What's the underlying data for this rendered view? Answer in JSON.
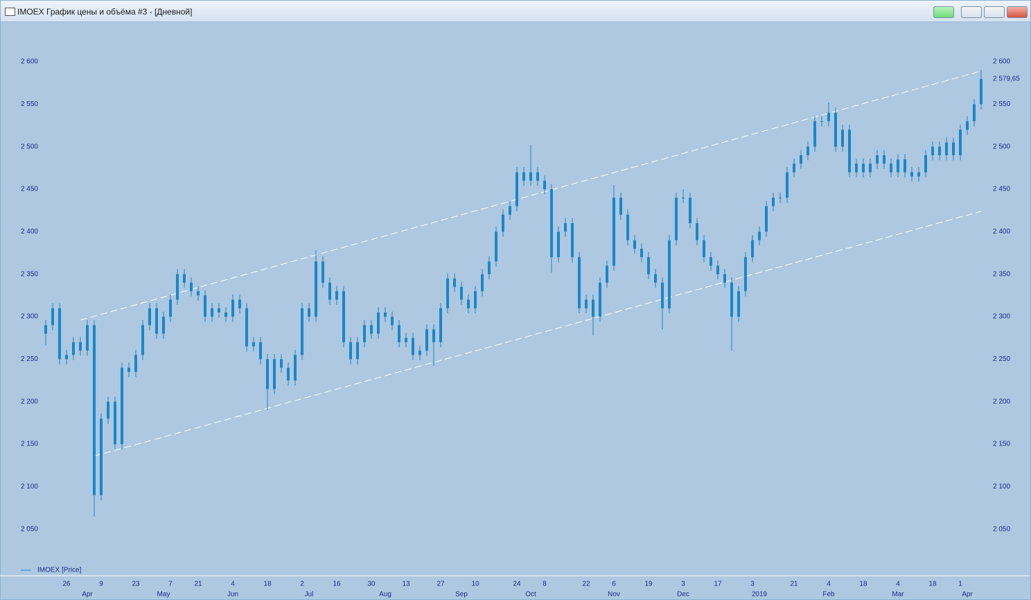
{
  "chart_data": {
    "type": "candlestick",
    "title": "IMOEX График цены и объёма #3 - [Дневной]",
    "last_price_label": "2 579,65",
    "series": [
      {
        "name": "IMOEX [Price]",
        "color": "#1a86c8",
        "open": [
          2280,
          2290,
          2310,
          2250,
          2255,
          2270,
          2260,
          2290,
          2090,
          2180,
          2200,
          2150,
          2240,
          2235,
          2255,
          2290,
          2310,
          2280,
          2300,
          2320,
          2350,
          2340,
          2330,
          2325,
          2300,
          2310,
          2305,
          2300,
          2320,
          2310,
          2265,
          2270,
          2250,
          2215,
          2250,
          2240,
          2225,
          2255,
          2310,
          2300,
          2365,
          2340,
          2320,
          2330,
          2270,
          2250,
          2270,
          2290,
          2280,
          2305,
          2300,
          2290,
          2270,
          2275,
          2255,
          2260,
          2285,
          2270,
          2310,
          2345,
          2335,
          2320,
          2310,
          2330,
          2350,
          2365,
          2400,
          2420,
          2430,
          2470,
          2460,
          2470,
          2460,
          2450,
          2370,
          2400,
          2410,
          2370,
          2310,
          2320,
          2300,
          2340,
          2360,
          2440,
          2420,
          2390,
          2380,
          2370,
          2350,
          2340,
          2310,
          2390,
          2440,
          2440,
          2410,
          2390,
          2370,
          2360,
          2350,
          2340,
          2300,
          2330,
          2370,
          2390,
          2400,
          2430,
          2440,
          2440,
          2470,
          2480,
          2490,
          2500,
          2530,
          2530,
          2540,
          2500,
          2520,
          2470,
          2480,
          2470,
          2480,
          2490,
          2480,
          2470,
          2485,
          2470,
          2465,
          2470,
          2490,
          2500,
          2490,
          2505,
          2490,
          2520,
          2530,
          2550
        ],
        "high": [
          2296,
          2316,
          2316,
          2261,
          2276,
          2276,
          2296,
          2296,
          2186,
          2206,
          2206,
          2246,
          2246,
          2261,
          2296,
          2316,
          2316,
          2306,
          2326,
          2356,
          2356,
          2346,
          2336,
          2331,
          2316,
          2316,
          2311,
          2326,
          2326,
          2316,
          2276,
          2276,
          2256,
          2256,
          2256,
          2246,
          2261,
          2316,
          2316,
          2378,
          2371,
          2346,
          2336,
          2336,
          2276,
          2276,
          2296,
          2296,
          2311,
          2311,
          2306,
          2296,
          2281,
          2281,
          2266,
          2291,
          2291,
          2316,
          2351,
          2351,
          2341,
          2326,
          2336,
          2356,
          2371,
          2406,
          2426,
          2436,
          2476,
          2476,
          2502,
          2476,
          2466,
          2456,
          2406,
          2416,
          2416,
          2376,
          2326,
          2326,
          2346,
          2366,
          2455,
          2446,
          2426,
          2396,
          2386,
          2376,
          2356,
          2346,
          2396,
          2446,
          2450,
          2446,
          2416,
          2396,
          2376,
          2366,
          2356,
          2346,
          2336,
          2376,
          2396,
          2406,
          2436,
          2446,
          2446,
          2476,
          2486,
          2496,
          2506,
          2536,
          2536,
          2552,
          2546,
          2526,
          2526,
          2486,
          2486,
          2486,
          2496,
          2496,
          2486,
          2491,
          2491,
          2476,
          2476,
          2496,
          2506,
          2506,
          2511,
          2511,
          2526,
          2536,
          2556,
          2590
        ],
        "low": [
          2266,
          2284,
          2244,
          2244,
          2249,
          2254,
          2254,
          2065,
          2084,
          2174,
          2144,
          2144,
          2229,
          2229,
          2249,
          2284,
          2274,
          2274,
          2294,
          2314,
          2334,
          2324,
          2319,
          2294,
          2294,
          2299,
          2294,
          2294,
          2304,
          2259,
          2259,
          2244,
          2190,
          2209,
          2234,
          2219,
          2219,
          2249,
          2294,
          2294,
          2334,
          2314,
          2314,
          2264,
          2244,
          2244,
          2264,
          2274,
          2274,
          2294,
          2284,
          2264,
          2264,
          2249,
          2249,
          2254,
          2242,
          2264,
          2304,
          2329,
          2314,
          2304,
          2304,
          2324,
          2344,
          2359,
          2394,
          2414,
          2424,
          2454,
          2454,
          2454,
          2444,
          2352,
          2364,
          2394,
          2364,
          2304,
          2304,
          2278,
          2294,
          2334,
          2354,
          2414,
          2384,
          2374,
          2364,
          2344,
          2334,
          2285,
          2304,
          2384,
          2434,
          2404,
          2384,
          2364,
          2354,
          2344,
          2334,
          2260,
          2294,
          2324,
          2364,
          2384,
          2394,
          2424,
          2434,
          2434,
          2464,
          2474,
          2484,
          2494,
          2524,
          2524,
          2494,
          2494,
          2464,
          2464,
          2464,
          2464,
          2474,
          2474,
          2464,
          2464,
          2464,
          2459,
          2459,
          2464,
          2484,
          2484,
          2484,
          2484,
          2484,
          2514,
          2524,
          2544
        ],
        "close": [
          2290,
          2310,
          2250,
          2255,
          2270,
          2260,
          2290,
          2090,
          2180,
          2200,
          2150,
          2240,
          2235,
          2255,
          2290,
          2310,
          2280,
          2300,
          2320,
          2350,
          2340,
          2330,
          2325,
          2300,
          2310,
          2305,
          2300,
          2320,
          2310,
          2265,
          2270,
          2250,
          2215,
          2250,
          2240,
          2225,
          2255,
          2310,
          2300,
          2365,
          2340,
          2320,
          2330,
          2270,
          2250,
          2270,
          2290,
          2280,
          2305,
          2300,
          2290,
          2270,
          2275,
          2255,
          2260,
          2285,
          2270,
          2310,
          2345,
          2335,
          2320,
          2310,
          2330,
          2350,
          2365,
          2400,
          2420,
          2430,
          2470,
          2460,
          2470,
          2460,
          2450,
          2370,
          2400,
          2410,
          2370,
          2310,
          2320,
          2300,
          2340,
          2360,
          2440,
          2420,
          2390,
          2380,
          2370,
          2350,
          2340,
          2310,
          2390,
          2440,
          2440,
          2410,
          2390,
          2370,
          2360,
          2350,
          2340,
          2300,
          2330,
          2370,
          2390,
          2400,
          2430,
          2440,
          2440,
          2470,
          2480,
          2490,
          2500,
          2530,
          2530,
          2540,
          2500,
          2520,
          2470,
          2480,
          2470,
          2480,
          2490,
          2480,
          2470,
          2485,
          2470,
          2465,
          2470,
          2490,
          2500,
          2490,
          2505,
          2490,
          2520,
          2530,
          2550,
          2579.65
        ]
      }
    ],
    "categories": [
      null,
      null,
      null,
      "26",
      null,
      null,
      null,
      null,
      "9",
      null,
      null,
      null,
      null,
      "23",
      null,
      null,
      null,
      null,
      "7",
      null,
      null,
      null,
      "21",
      null,
      null,
      null,
      null,
      "4",
      null,
      null,
      null,
      null,
      "18",
      null,
      null,
      null,
      null,
      "2",
      null,
      null,
      null,
      null,
      "16",
      null,
      null,
      null,
      null,
      "30",
      null,
      null,
      null,
      null,
      "13",
      null,
      null,
      null,
      null,
      "27",
      null,
      null,
      null,
      null,
      "10",
      null,
      null,
      null,
      null,
      null,
      "24",
      null,
      null,
      null,
      "8",
      null,
      null,
      null,
      null,
      null,
      "22",
      null,
      null,
      null,
      "6",
      null,
      null,
      null,
      null,
      "19",
      null,
      null,
      null,
      null,
      "3",
      null,
      null,
      null,
      null,
      "17",
      null,
      null,
      null,
      null,
      "3",
      null,
      null,
      null,
      null,
      null,
      "21",
      null,
      null,
      null,
      null,
      "4",
      null,
      null,
      null,
      null,
      "18",
      null,
      null,
      null,
      null,
      "4",
      null,
      null,
      null,
      null,
      "18",
      null,
      null,
      null,
      "1",
      null,
      null,
      null
    ],
    "months": [
      null,
      null,
      null,
      null,
      null,
      null,
      "Apr",
      null,
      null,
      null,
      null,
      null,
      null,
      null,
      null,
      null,
      null,
      "May",
      null,
      null,
      null,
      null,
      null,
      null,
      null,
      null,
      null,
      "Jun",
      null,
      null,
      null,
      null,
      null,
      null,
      null,
      null,
      null,
      null,
      "Jul",
      null,
      null,
      null,
      null,
      null,
      null,
      null,
      null,
      null,
      null,
      "Aug",
      null,
      null,
      null,
      null,
      null,
      null,
      null,
      null,
      null,
      null,
      "Sep",
      null,
      null,
      null,
      null,
      null,
      null,
      null,
      null,
      null,
      "Oct",
      null,
      null,
      null,
      null,
      null,
      null,
      null,
      null,
      null,
      null,
      null,
      "Nov",
      null,
      null,
      null,
      null,
      null,
      null,
      null,
      null,
      null,
      "Dec",
      null,
      null,
      null,
      null,
      null,
      null,
      null,
      null,
      null,
      null,
      "2019",
      null,
      null,
      null,
      null,
      null,
      null,
      null,
      null,
      null,
      "Feb",
      null,
      null,
      null,
      null,
      null,
      null,
      null,
      null,
      null,
      "Mar",
      null,
      null,
      null,
      null,
      null,
      null,
      null,
      null,
      null,
      "Apr",
      null,
      null
    ],
    "trendlines": [
      {
        "x": [
          5,
          135
        ],
        "values": [
          2296,
          2589
        ],
        "color": "#ffffff"
      },
      {
        "x": [
          7,
          135
        ],
        "values": [
          2136,
          2424
        ],
        "color": "#ffffff"
      }
    ],
    "ylim": [
      1996,
      2640
    ],
    "yticks": [
      {
        "value": 2050,
        "label": "2 050"
      },
      {
        "value": 2100,
        "label": "2 100"
      },
      {
        "value": 2150,
        "label": "2 150"
      },
      {
        "value": 2200,
        "label": "2 200"
      },
      {
        "value": 2250,
        "label": "2 250"
      },
      {
        "value": 2300,
        "label": "2 300"
      },
      {
        "value": 2350,
        "label": "2 350"
      },
      {
        "value": 2400,
        "label": "2 400"
      },
      {
        "value": 2450,
        "label": "2 450"
      },
      {
        "value": 2500,
        "label": "2 500"
      },
      {
        "value": 2550,
        "label": "2 550"
      },
      {
        "value": 2600,
        "label": "2 600"
      }
    ]
  }
}
